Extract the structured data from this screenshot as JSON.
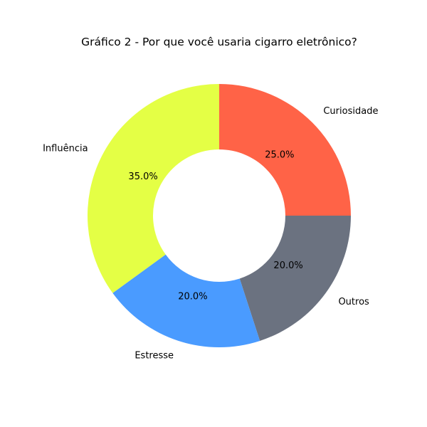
{
  "chart_data": {
    "type": "pie",
    "style": "donut",
    "title": "Gráfico 2 - Por que você usaria cigarro eletrônico?",
    "slices": [
      {
        "label": "Curiosidade",
        "value": 25.0,
        "pct_label": "25.0%",
        "color": "#ff6347"
      },
      {
        "label": "Outros",
        "value": 20.0,
        "pct_label": "20.0%",
        "color": "#6b7280"
      },
      {
        "label": "Estresse",
        "value": 20.0,
        "pct_label": "20.0%",
        "color": "#4a9bff"
      },
      {
        "label": "Influência",
        "value": 35.0,
        "pct_label": "35.0%",
        "color": "#e4ff45"
      }
    ],
    "start_angle_deg": 90,
    "direction": "clockwise",
    "legend": "none"
  }
}
